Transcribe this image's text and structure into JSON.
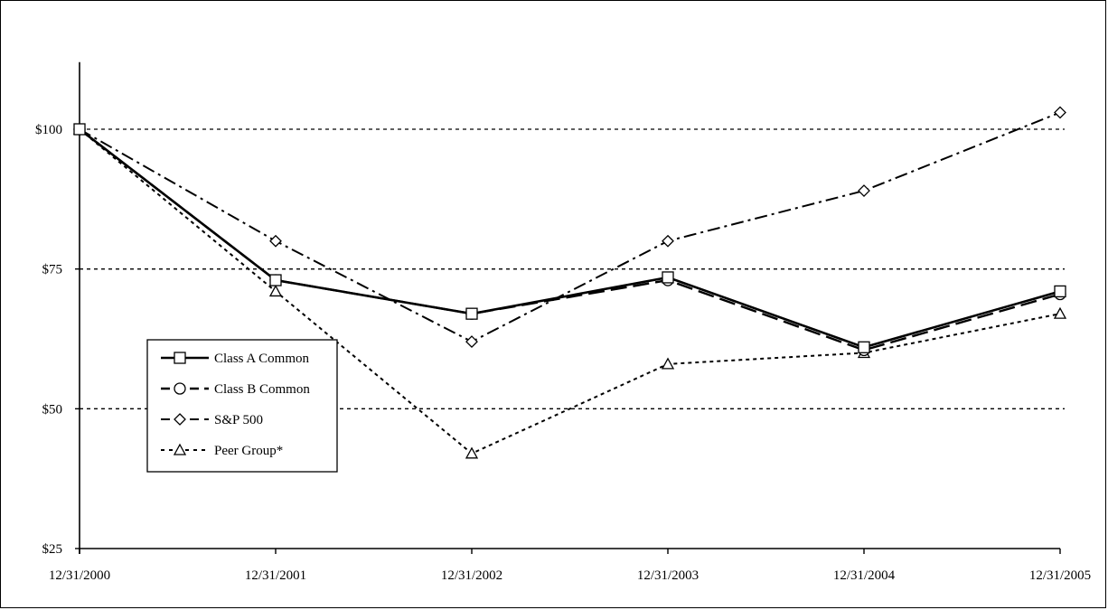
{
  "chart_data": {
    "type": "line",
    "title": "",
    "xlabel": "",
    "ylabel": "",
    "x": [
      "12/31/2000",
      "12/31/2001",
      "12/31/2002",
      "12/31/2003",
      "12/31/2004",
      "12/31/2005"
    ],
    "ylim": [
      25,
      112
    ],
    "yticks": [
      25,
      50,
      75,
      100
    ],
    "ytick_labels": [
      "$25",
      "$50",
      "$75",
      "$100"
    ],
    "grid": "horizontal dashed at $50, $75, $100",
    "legend_position": "left",
    "series": [
      {
        "name": "Class A Common",
        "values": [
          100,
          73,
          67,
          73.5,
          61,
          71
        ],
        "marker": "square",
        "line_style": "solid",
        "color": "#000000"
      },
      {
        "name": "Class B Common",
        "values": [
          100,
          73,
          67,
          73,
          60.5,
          70.5
        ],
        "marker": "circle",
        "line_style": "dashed",
        "color": "#000000"
      },
      {
        "name": "S&P 500",
        "values": [
          100,
          80,
          62,
          80,
          89,
          103
        ],
        "marker": "diamond",
        "line_style": "dash-dot",
        "color": "#000000"
      },
      {
        "name": "Peer Group*",
        "values": [
          100,
          71,
          42,
          58,
          60,
          67
        ],
        "marker": "triangle",
        "line_style": "dotted",
        "color": "#000000"
      }
    ]
  }
}
